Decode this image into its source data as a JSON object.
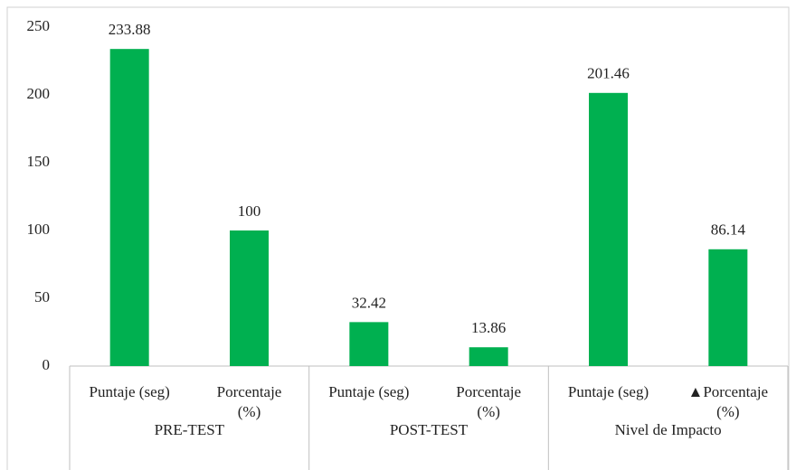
{
  "chart_data": {
    "type": "bar",
    "categories": [
      "Puntaje (seg)",
      "Porcentaje\n(%)",
      "Puntaje (seg)",
      "Porcentaje\n(%)",
      "Puntaje (seg)",
      "▲Porcentaje\n(%)"
    ],
    "groups": [
      "PRE-TEST",
      "POST-TEST",
      "Nivel de Impacto"
    ],
    "values": [
      233.88,
      100,
      32.42,
      13.86,
      201.46,
      86.14
    ],
    "color": "#00b050",
    "ylim": [
      0,
      250
    ],
    "yticks": [
      0,
      50,
      100,
      150,
      200,
      250
    ],
    "grid": false
  }
}
